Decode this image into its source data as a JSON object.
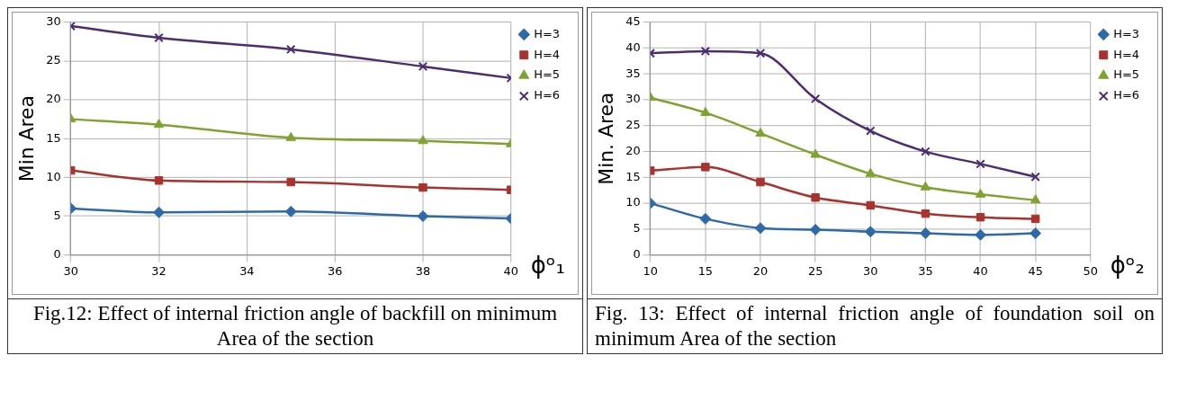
{
  "chart_data": [
    {
      "type": "line",
      "xlabel": "ϕᵒ₁",
      "ylabel": "Min Area",
      "x": [
        30,
        32,
        35,
        38,
        40
      ],
      "xlim": [
        30,
        40
      ],
      "xticks": [
        30,
        32,
        34,
        36,
        38,
        40
      ],
      "ylim": [
        0,
        30
      ],
      "yticks": [
        0,
        5,
        10,
        15,
        20,
        25,
        30
      ],
      "grid": true,
      "legend": "top right",
      "series": [
        {
          "name": "H=3",
          "color": "#2e6aa8",
          "marker": "diamond",
          "values": [
            6,
            5.5,
            5.6,
            5,
            4.7
          ]
        },
        {
          "name": "H=4",
          "color": "#a8322e",
          "marker": "square",
          "values": [
            10.9,
            9.6,
            9.4,
            8.7,
            8.4
          ]
        },
        {
          "name": "H=5",
          "color": "#7fa32e",
          "marker": "triangle",
          "values": [
            17.5,
            16.8,
            15.1,
            14.7,
            14.3
          ]
        },
        {
          "name": "H=6",
          "color": "#4b2d70",
          "marker": "cross",
          "values": [
            29.5,
            28,
            26.5,
            24.3,
            22.8
          ]
        }
      ],
      "annotations": [
        "Fig.12: Effect of internal friction angle of backfill on minimum Area of the section"
      ]
    },
    {
      "type": "line",
      "xlabel": "ϕᵒ₂",
      "ylabel": "Min. Area",
      "x": [
        10,
        15,
        20,
        25,
        30,
        35,
        40,
        45
      ],
      "xlim": [
        10,
        50
      ],
      "xticks": [
        10,
        15,
        20,
        25,
        30,
        35,
        40,
        45,
        50
      ],
      "ylim": [
        0,
        45
      ],
      "yticks": [
        0,
        5,
        10,
        15,
        20,
        25,
        30,
        35,
        40,
        45
      ],
      "grid": true,
      "legend": "top right",
      "series": [
        {
          "name": "H=3",
          "color": "#2e6aa8",
          "marker": "diamond",
          "values": [
            10,
            7,
            5.2,
            4.9,
            4.5,
            4.2,
            3.9,
            4.2
          ]
        },
        {
          "name": "H=4",
          "color": "#a8322e",
          "marker": "square",
          "values": [
            16.3,
            17,
            14.1,
            11.1,
            9.6,
            8,
            7.3,
            7
          ]
        },
        {
          "name": "H=5",
          "color": "#7fa32e",
          "marker": "triangle",
          "values": [
            30.4,
            27.5,
            23.5,
            19.4,
            15.7,
            13.1,
            11.7,
            10.6
          ]
        },
        {
          "name": "H=6",
          "color": "#4b2d70",
          "marker": "cross",
          "values": [
            39,
            39.4,
            39,
            30.2,
            24,
            20,
            17.6,
            15.1
          ]
        }
      ],
      "annotations": [
        "Fig. 13: Effect of internal friction angle of foundation soil on minimum Area of the section"
      ]
    }
  ]
}
